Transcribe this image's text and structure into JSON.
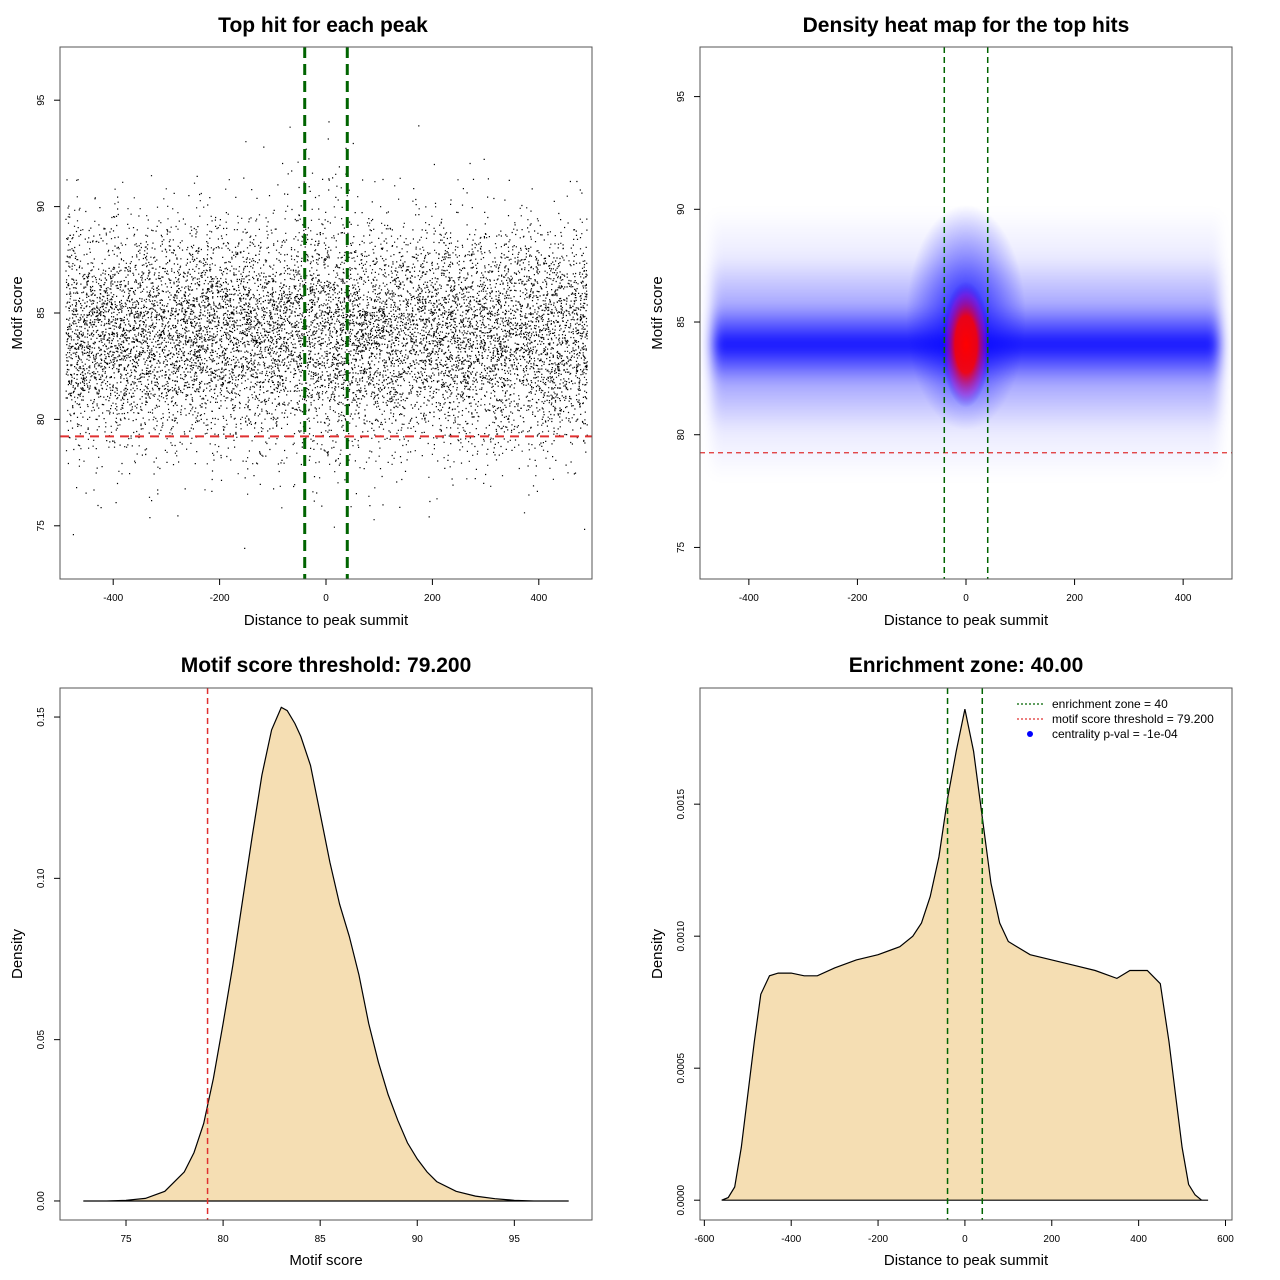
{
  "chart_data": [
    {
      "id": "scatter",
      "type": "scatter",
      "title": "Top hit for each peak",
      "xlabel": "Distance to peak summit",
      "ylabel": "Motif score",
      "xlim": [
        -500,
        500
      ],
      "ylim": [
        72.5,
        97.5
      ],
      "xticks": [
        -400,
        -200,
        0,
        200,
        400
      ],
      "yticks": [
        75,
        80,
        85,
        90,
        95
      ],
      "x_range_of_points": [
        -490,
        490
      ],
      "score_center": 84,
      "threshold": 79.2,
      "vlines": [
        -40,
        40
      ],
      "colors": {
        "points": "#000000",
        "threshold": "#e03030",
        "zone": "#006400"
      }
    },
    {
      "id": "heatmap",
      "type": "heatmap",
      "title": "Density heat map for the top hits",
      "xlabel": "Distance to peak summit",
      "ylabel": "Motif score",
      "xlim": [
        -490,
        490
      ],
      "ylim": [
        73.6,
        97.2
      ],
      "xticks": [
        -400,
        -200,
        0,
        200,
        400
      ],
      "yticks": [
        75,
        80,
        85,
        90,
        95
      ],
      "density_peak": {
        "x": 0,
        "y": 84
      },
      "threshold": 79.2,
      "vlines": [
        -40,
        40
      ],
      "colors": {
        "low": "#ffffff",
        "mid": "#0000ff",
        "high": "#ff0000",
        "threshold": "#e03030",
        "zone": "#006400"
      }
    },
    {
      "id": "score_density",
      "type": "area",
      "title": "Motif score threshold: 79.200",
      "xlabel": "Motif score",
      "ylabel": "Density",
      "xlim": [
        71.6,
        99
      ],
      "ylim": [
        -0.0059,
        0.159
      ],
      "xticks": [
        75,
        80,
        85,
        90,
        95
      ],
      "yticks": [
        0.0,
        0.05,
        0.1,
        0.15
      ],
      "ytick_labels": [
        "0.00",
        "0.05",
        "0.10",
        "0.15"
      ],
      "x": [
        72.8,
        74.0,
        75.0,
        76.0,
        77.0,
        78.0,
        78.5,
        79.0,
        79.5,
        80.0,
        80.5,
        81.0,
        81.5,
        82.0,
        82.5,
        83.0,
        83.3,
        83.7,
        84.0,
        84.5,
        85.0,
        85.5,
        86.0,
        86.5,
        87.0,
        87.5,
        88.0,
        88.5,
        89.0,
        89.5,
        90.0,
        90.5,
        91.0,
        92.0,
        93.0,
        94.0,
        95.0,
        96.0,
        97.8
      ],
      "values": [
        0.0,
        0.0,
        0.0002,
        0.0008,
        0.003,
        0.009,
        0.015,
        0.024,
        0.038,
        0.055,
        0.073,
        0.093,
        0.113,
        0.132,
        0.146,
        0.153,
        0.152,
        0.148,
        0.144,
        0.135,
        0.12,
        0.105,
        0.092,
        0.082,
        0.07,
        0.055,
        0.043,
        0.033,
        0.025,
        0.018,
        0.013,
        0.009,
        0.006,
        0.003,
        0.0015,
        0.0007,
        0.0002,
        0.0,
        0.0
      ],
      "threshold": 79.2,
      "colors": {
        "fill": "#f5deb3",
        "line": "#000000",
        "threshold": "#e03030"
      }
    },
    {
      "id": "distance_density",
      "type": "area",
      "title": "Enrichment zone: 40.00",
      "xlabel": "Distance to peak summit",
      "ylabel": "Density",
      "xlim": [
        -610,
        615
      ],
      "ylim": [
        -7.5e-05,
        0.00194
      ],
      "xticks": [
        -600,
        -400,
        -200,
        0,
        200,
        400,
        600
      ],
      "yticks": [
        0.0,
        0.0005,
        0.001,
        0.0015
      ],
      "ytick_labels": [
        "0.0000",
        "0.0005",
        "0.0010",
        "0.0015"
      ],
      "x": [
        -560,
        -545,
        -530,
        -515,
        -500,
        -485,
        -470,
        -450,
        -430,
        -400,
        -370,
        -340,
        -300,
        -250,
        -200,
        -150,
        -120,
        -100,
        -80,
        -60,
        -40,
        -20,
        0,
        20,
        40,
        60,
        80,
        100,
        150,
        200,
        250,
        300,
        350,
        380,
        420,
        450,
        470,
        485,
        500,
        515,
        530,
        545,
        560
      ],
      "values": [
        0.0,
        1e-05,
        5e-05,
        0.0002,
        0.0004,
        0.0006,
        0.00078,
        0.00085,
        0.00086,
        0.00086,
        0.00085,
        0.00085,
        0.00088,
        0.00091,
        0.00093,
        0.00096,
        0.001,
        0.00105,
        0.00115,
        0.0013,
        0.00152,
        0.0017,
        0.00186,
        0.0017,
        0.00145,
        0.0012,
        0.00105,
        0.00098,
        0.00093,
        0.00091,
        0.00089,
        0.00087,
        0.00084,
        0.00087,
        0.00087,
        0.00082,
        0.0006,
        0.0004,
        0.0002,
        6e-05,
        2e-05,
        0.0,
        0.0
      ],
      "vlines": [
        -40,
        40
      ],
      "legend": [
        {
          "label": "enrichment zone = 40",
          "color": "#006400",
          "style": "dotted-line"
        },
        {
          "label": "motif score threshold = 79.200",
          "color": "#e03030",
          "style": "dotted-line"
        },
        {
          "label": "centrality p-val = -1e-04",
          "color": "#0000ff",
          "style": "point"
        }
      ],
      "legend_position": "top-right",
      "colors": {
        "fill": "#f5deb3",
        "line": "#000000",
        "zone": "#006400"
      }
    }
  ]
}
